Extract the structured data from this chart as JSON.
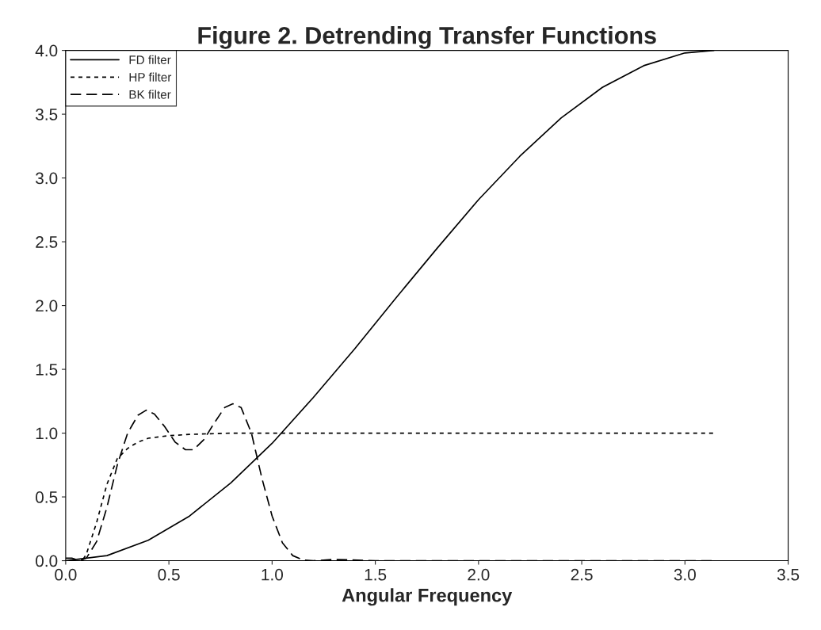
{
  "chart_data": {
    "type": "line",
    "title": "Figure 2. Detrending Transfer Functions",
    "xlabel": "Angular Frequency",
    "xlim": [
      0,
      3.5
    ],
    "xticks": [
      {
        "value": 0,
        "label": "0.0"
      },
      0.5,
      {
        "value": 1,
        "label": "1.0"
      },
      1.5,
      {
        "value": 2,
        "label": "2.0"
      },
      2.5,
      {
        "value": 3,
        "label": "3.0"
      },
      3.5
    ],
    "ylim": [
      0,
      4
    ],
    "yticks": [
      {
        "value": 0,
        "label": "0.0"
      },
      0.5,
      {
        "value": 1,
        "label": "1.0"
      },
      1.5,
      {
        "value": 2,
        "label": "2.0"
      },
      2.5,
      {
        "value": 3,
        "label": "3.0"
      },
      3.5,
      {
        "value": 4,
        "label": "4.0"
      }
    ],
    "grid": false,
    "legend": "top left",
    "marker": "none",
    "series": [
      {
        "name": "FD filter",
        "color": "#000000",
        "line_style": "solid",
        "x": [
          0,
          0.2,
          0.4,
          0.6,
          0.8,
          1.0,
          1.2,
          1.4,
          1.6,
          1.8,
          2.0,
          2.2,
          2.4,
          2.6,
          2.8,
          3.0,
          3.14
        ],
        "values": [
          0,
          0.04,
          0.16,
          0.35,
          0.61,
          0.92,
          1.28,
          1.66,
          2.06,
          2.45,
          2.83,
          3.17,
          3.47,
          3.71,
          3.88,
          3.98,
          4.0
        ]
      },
      {
        "name": "HP filter",
        "color": "#000000",
        "line_style": "dashed",
        "x": [
          0.05,
          0.08,
          0.1,
          0.15,
          0.2,
          0.25,
          0.3,
          0.35,
          0.4,
          0.5,
          0.6,
          0.8,
          1.0,
          2.0,
          3.14
        ],
        "values": [
          0,
          0,
          0.05,
          0.3,
          0.6,
          0.8,
          0.88,
          0.93,
          0.96,
          0.98,
          0.99,
          1.0,
          1.0,
          1.0,
          1.0
        ]
      },
      {
        "name": "BK filter",
        "color": "#000000",
        "line_style": "dashed",
        "x": [
          0,
          0.03,
          0.07,
          0.1,
          0.15,
          0.2,
          0.25,
          0.3,
          0.35,
          0.39,
          0.43,
          0.48,
          0.53,
          0.58,
          0.62,
          0.67,
          0.72,
          0.77,
          0.81,
          0.85,
          0.9,
          0.95,
          1.0,
          1.05,
          1.1,
          1.15,
          1.2,
          1.3,
          1.5,
          2.0,
          2.5,
          3.14
        ],
        "values": [
          0.02,
          0.02,
          0,
          0.02,
          0.15,
          0.42,
          0.75,
          1.0,
          1.14,
          1.18,
          1.15,
          1.05,
          0.93,
          0.87,
          0.87,
          0.95,
          1.08,
          1.2,
          1.23,
          1.2,
          1.0,
          0.65,
          0.35,
          0.14,
          0.04,
          0.005,
          0,
          0.01,
          0,
          0,
          0,
          0
        ]
      }
    ]
  }
}
